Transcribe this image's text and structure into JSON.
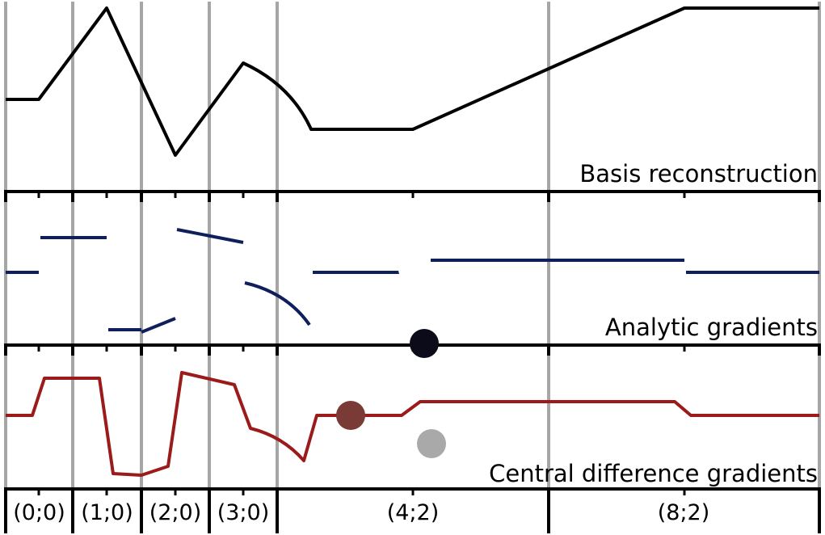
{
  "panels": {
    "basis": {
      "label": "Basis reconstruction"
    },
    "analytic": {
      "label": "Analytic gradients"
    },
    "central": {
      "label": "Central difference gradients"
    }
  },
  "intervals": [
    {
      "label": "(0;0)"
    },
    {
      "label": "(1;0)"
    },
    {
      "label": "(2;0)"
    },
    {
      "label": "(3;0)"
    },
    {
      "label": "(4;2)"
    },
    {
      "label": "(8;2)"
    }
  ],
  "colors": {
    "basis_curve": "#000000",
    "analytic_curve": "#0f1f5c",
    "central_curve": "#9b1b1b",
    "grid_line": "#a6a6a6",
    "axis": "#000000",
    "marker_dark": "#0b0b1a",
    "marker_brown": "#7a3a36",
    "marker_gray": "#a9a9a9",
    "marker_white": "#ffffff"
  }
}
